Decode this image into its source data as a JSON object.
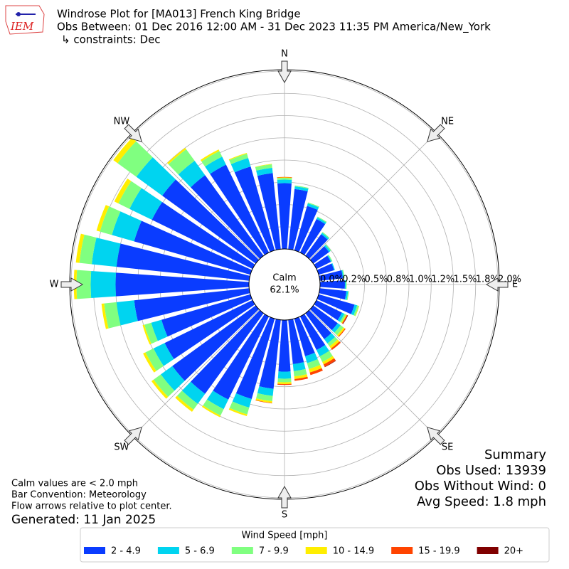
{
  "logo_text": "IEM",
  "header": {
    "title": "Windrose Plot for [MA013] French King Bridge",
    "subtitle": "Obs Between: 01 Dec 2016 12:00 AM - 31 Dec 2023 11:35 PM America/New_York",
    "constraints": "↳ constraints: Dec"
  },
  "notes": [
    "Calm values are < 2.0 mph",
    "Bar Convention: Meteorology",
    "Flow arrows relative to plot center."
  ],
  "generated": "Generated: 11 Jan 2025",
  "summary": [
    "Summary",
    "Obs Used: 13939",
    "Obs Without Wind: 0",
    "Avg Speed: 1.8 mph"
  ],
  "chart_data": {
    "type": "windrose",
    "calm_label": "Calm",
    "calm_value": "62.1%",
    "legend_title": "Wind Speed [mph]",
    "legend": "bottom",
    "grid": true,
    "x": [
      0,
      10,
      20,
      30,
      40,
      50,
      60,
      70,
      80,
      90,
      100,
      110,
      120,
      130,
      140,
      150,
      160,
      170,
      180,
      190,
      200,
      210,
      220,
      230,
      240,
      250,
      260,
      270,
      280,
      290,
      300,
      310,
      320,
      330,
      340,
      350
    ],
    "xticks": [
      {
        "value": 0,
        "label": "N"
      },
      {
        "value": 45,
        "label": "NE"
      },
      {
        "value": 90,
        "label": "E"
      },
      {
        "value": 135,
        "label": "SE"
      },
      {
        "value": 180,
        "label": "S"
      },
      {
        "value": 225,
        "label": "SW"
      },
      {
        "value": 270,
        "label": "W"
      },
      {
        "value": 315,
        "label": "NW"
      }
    ],
    "ylim": [
      0,
      2.0
    ],
    "yticks": [
      {
        "value": 0,
        "label": "0.0%"
      },
      {
        "value": 0.25,
        "label": "0.2%"
      },
      {
        "value": 0.5,
        "label": "0.5%"
      },
      {
        "value": 0.75,
        "label": "0.8%"
      },
      {
        "value": 1.0,
        "label": "1.0%"
      },
      {
        "value": 1.25,
        "label": "1.2%"
      },
      {
        "value": 1.5,
        "label": "1.5%"
      },
      {
        "value": 1.75,
        "label": "1.8%"
      },
      {
        "value": 2.0,
        "label": "2.0%"
      }
    ],
    "series": [
      {
        "name": "2 - 4.9",
        "color": "#0a3cff",
        "values": [
          0.74,
          0.68,
          0.52,
          0.42,
          0.3,
          0.22,
          0.18,
          0.18,
          0.26,
          0.28,
          0.3,
          0.42,
          0.32,
          0.34,
          0.36,
          0.42,
          0.44,
          0.5,
          0.58,
          0.78,
          0.94,
          1.04,
          1.12,
          1.16,
          1.1,
          1.04,
          1.3,
          1.5,
          1.5,
          1.36,
          1.26,
          1.3,
          1.12,
          1.1,
          0.98,
          0.86
        ]
      },
      {
        "name": "5 - 6.9",
        "color": "#00d4f0",
        "values": [
          0.04,
          0.03,
          0.03,
          0.02,
          0.02,
          0.02,
          0.01,
          0.01,
          0.01,
          0.01,
          0.02,
          0.03,
          0.03,
          0.04,
          0.06,
          0.08,
          0.08,
          0.08,
          0.08,
          0.08,
          0.1,
          0.12,
          0.14,
          0.16,
          0.14,
          0.12,
          0.2,
          0.28,
          0.28,
          0.26,
          0.28,
          0.36,
          0.2,
          0.1,
          0.1,
          0.06
        ]
      },
      {
        "name": "7 - 9.9",
        "color": "#80ff80",
        "values": [
          0.02,
          0.01,
          0.01,
          0.01,
          0.01,
          0.01,
          0.01,
          0,
          0.01,
          0.01,
          0.01,
          0.02,
          0.02,
          0.04,
          0.04,
          0.07,
          0.07,
          0.06,
          0.04,
          0.06,
          0.08,
          0.08,
          0.08,
          0.1,
          0.1,
          0.08,
          0.14,
          0.16,
          0.14,
          0.14,
          0.14,
          0.26,
          0.16,
          0.07,
          0.05,
          0.04
        ]
      },
      {
        "name": "10 - 14.9",
        "color": "#ffee00",
        "values": [
          0.005,
          0,
          0,
          0,
          0,
          0,
          0,
          0,
          0,
          0,
          0,
          0.005,
          0.01,
          0.02,
          0.03,
          0.03,
          0.04,
          0.03,
          0.02,
          0.02,
          0.02,
          0.02,
          0.03,
          0.03,
          0.03,
          0.02,
          0.03,
          0.03,
          0.04,
          0.04,
          0.05,
          0.06,
          0.02,
          0.02,
          0.01,
          0.005
        ]
      },
      {
        "name": "15 - 19.9",
        "color": "#ff4400",
        "values": [
          0.005,
          0,
          0,
          0,
          0,
          0,
          0,
          0,
          0,
          0,
          0,
          0,
          0.01,
          0.01,
          0.02,
          0.03,
          0.03,
          0.02,
          0.01,
          0.005,
          0,
          0,
          0,
          0,
          0,
          0,
          0,
          0,
          0,
          0,
          0,
          0,
          0,
          0,
          0,
          0
        ]
      },
      {
        "name": "20+",
        "color": "#800000",
        "values": [
          0,
          0,
          0,
          0,
          0,
          0,
          0,
          0,
          0,
          0,
          0,
          0,
          0.005,
          0,
          0,
          0.005,
          0,
          0,
          0,
          0,
          0,
          0,
          0,
          0,
          0,
          0,
          0,
          0,
          0,
          0,
          0,
          0,
          0,
          0,
          0,
          0
        ]
      }
    ]
  }
}
